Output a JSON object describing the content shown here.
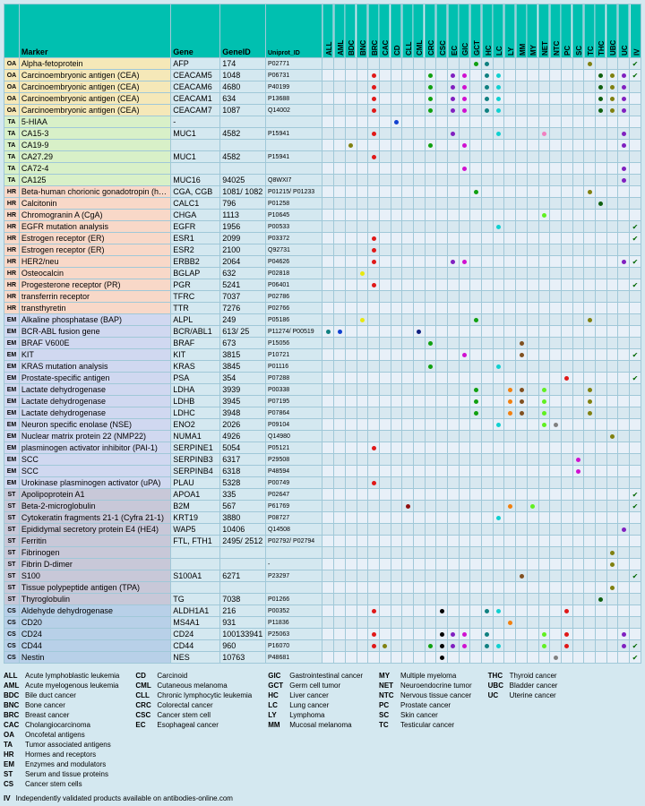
{
  "headers": [
    "",
    "Marker",
    "Gene",
    "GeneID",
    "Uniprot_ID"
  ],
  "cancer_cols": [
    "ALL",
    "AML",
    "BDC",
    "BNC",
    "BRC",
    "CAC",
    "CD",
    "CLL",
    "CML",
    "CRC",
    "CSC",
    "EC",
    "GIC",
    "GCT",
    "HC",
    "LC",
    "LY",
    "MM",
    "MY",
    "NET",
    "NTC",
    "PC",
    "SC",
    "TC",
    "THC",
    "UBC",
    "UC",
    "IV"
  ],
  "colors": {
    "red": "#e01818",
    "blue": "#1040d0",
    "green": "#10a010",
    "cyan": "#10d0d0",
    "magenta": "#d010d0",
    "yellow": "#e8e810",
    "orange": "#f08010",
    "purple": "#8020c0",
    "olive": "#808010",
    "teal": "#108080",
    "black": "#000000",
    "dgreen": "#106010",
    "lime": "#60f020",
    "navy": "#102080",
    "brown": "#805020",
    "pink": "#f080c0",
    "grey": "#808080",
    "dred": "#901010"
  },
  "rows": [
    {
      "cat": "OA",
      "marker": "Alpha-fetoprotein",
      "gene": "AFP",
      "id": "174",
      "uni": "P02771",
      "dots": {
        "GCT": "green",
        "HC": "teal",
        "TC": "olive"
      },
      "iv": true
    },
    {
      "cat": "OA",
      "marker": "Carcinoembryonic antigen (CEA)",
      "gene": "CEACAM5",
      "id": "1048",
      "uni": "P06731",
      "dots": {
        "BRC": "red",
        "CRC": "green",
        "EC": "purple",
        "GIC": "magenta",
        "HC": "teal",
        "LC": "cyan",
        "THC": "dgreen",
        "UBC": "olive",
        "UC": "purple"
      },
      "iv": true
    },
    {
      "cat": "OA",
      "marker": "Carcinoembryonic antigen (CEA)",
      "gene": "CEACAM6",
      "id": "4680",
      "uni": "P40199",
      "dots": {
        "BRC": "red",
        "CRC": "green",
        "EC": "purple",
        "GIC": "magenta",
        "HC": "teal",
        "LC": "cyan",
        "THC": "dgreen",
        "UBC": "olive",
        "UC": "purple"
      }
    },
    {
      "cat": "OA",
      "marker": "Carcinoembryonic antigen (CEA)",
      "gene": "CEACAM1",
      "id": "634",
      "uni": "P13688",
      "dots": {
        "BRC": "red",
        "CRC": "green",
        "EC": "purple",
        "GIC": "magenta",
        "HC": "teal",
        "LC": "cyan",
        "THC": "dgreen",
        "UBC": "olive",
        "UC": "purple"
      }
    },
    {
      "cat": "OA",
      "marker": "Carcinoembryonic antigen (CEA)",
      "gene": "CEACAM7",
      "id": "1087",
      "uni": "Q14002",
      "dots": {
        "BRC": "red",
        "CRC": "green",
        "EC": "purple",
        "GIC": "magenta",
        "HC": "teal",
        "LC": "cyan",
        "THC": "dgreen",
        "UBC": "olive",
        "UC": "purple"
      }
    },
    {
      "cat": "TA",
      "marker": "5-HIAA",
      "gene": "-",
      "id": "",
      "uni": "",
      "dots": {
        "CD": "blue"
      }
    },
    {
      "cat": "TA",
      "marker": "CA15-3",
      "gene": "MUC1",
      "id": "4582",
      "uni": "P15941",
      "dots": {
        "BRC": "red",
        "EC": "purple",
        "LC": "cyan",
        "NET": "pink",
        "UC": "purple"
      }
    },
    {
      "cat": "TA",
      "marker": "CA19-9",
      "gene": "",
      "id": "",
      "uni": "",
      "dots": {
        "BDC": "olive",
        "CRC": "green",
        "GIC": "magenta",
        "UC": "purple"
      }
    },
    {
      "cat": "TA",
      "marker": "CA27.29",
      "gene": "MUC1",
      "id": "4582",
      "uni": "P15941",
      "dots": {
        "BRC": "red"
      }
    },
    {
      "cat": "TA",
      "marker": "CA72-4",
      "gene": "",
      "id": "",
      "uni": "",
      "dots": {
        "GIC": "magenta",
        "UC": "purple"
      }
    },
    {
      "cat": "TA",
      "marker": "CA125",
      "gene": "MUC16",
      "id": "94025",
      "uni": "Q8WXI7",
      "dots": {
        "UC": "purple"
      }
    },
    {
      "cat": "HR",
      "marker": "Beta-human chorionic gonadotropin (hCGβ)",
      "gene": "CGA, CGB",
      "id": "1081/ 1082",
      "uni": "P01215/ P01233",
      "dots": {
        "GCT": "green",
        "TC": "olive"
      }
    },
    {
      "cat": "HR",
      "marker": "Calcitonin",
      "gene": "CALC1",
      "id": "796",
      "uni": "P01258",
      "dots": {
        "THC": "dgreen"
      }
    },
    {
      "cat": "HR",
      "marker": "Chromogranin A (CgA)",
      "gene": "CHGA",
      "id": "1113",
      "uni": "P10645",
      "dots": {
        "NET": "lime"
      }
    },
    {
      "cat": "HR",
      "marker": "EGFR mutation analysis",
      "gene": "EGFR",
      "id": "1956",
      "uni": "P00533",
      "dots": {
        "LC": "cyan"
      },
      "iv": true
    },
    {
      "cat": "HR",
      "marker": "Estrogen receptor (ER)",
      "gene": "ESR1",
      "id": "2099",
      "uni": "P03372",
      "dots": {
        "BRC": "red"
      },
      "iv": true
    },
    {
      "cat": "HR",
      "marker": "Estrogen receptor (ER)",
      "gene": "ESR2",
      "id": "2100",
      "uni": "Q92731",
      "dots": {
        "BRC": "red"
      }
    },
    {
      "cat": "HR",
      "marker": "HER2/neu",
      "gene": "ERBB2",
      "id": "2064",
      "uni": "P04626",
      "dots": {
        "BRC": "red",
        "EC": "purple",
        "GIC": "magenta",
        "UC": "purple"
      },
      "iv": true
    },
    {
      "cat": "HR",
      "marker": "Osteocalcin",
      "gene": "BGLAP",
      "id": "632",
      "uni": "P02818",
      "dots": {
        "BNC": "yellow"
      }
    },
    {
      "cat": "HR",
      "marker": "Progesterone receptor (PR)",
      "gene": "PGR",
      "id": "5241",
      "uni": "P06401",
      "dots": {
        "BRC": "red"
      },
      "iv": true
    },
    {
      "cat": "HR",
      "marker": "transferrin receptor",
      "gene": "TFRC",
      "id": "7037",
      "uni": "P02786",
      "dots": {}
    },
    {
      "cat": "HR",
      "marker": "transthyretin",
      "gene": "TTR",
      "id": "7276",
      "uni": "P02766",
      "dots": {}
    },
    {
      "cat": "EM",
      "marker": "Alkaline phosphatase (BAP)",
      "gene": "ALPL",
      "id": "249",
      "uni": "P05186",
      "dots": {
        "BNC": "yellow",
        "GCT": "green",
        "TC": "olive"
      }
    },
    {
      "cat": "EM",
      "marker": "BCR-ABL fusion gene",
      "gene": "BCR/ABL1",
      "id": "613/ 25",
      "uni": "P11274/ P00519",
      "dots": {
        "ALL": "teal",
        "AML": "blue",
        "CML": "navy"
      }
    },
    {
      "cat": "EM",
      "marker": "BRAF V600E",
      "gene": "BRAF",
      "id": "673",
      "uni": "P15056",
      "dots": {
        "CRC": "green",
        "MM": "brown"
      }
    },
    {
      "cat": "EM",
      "marker": "KIT",
      "gene": "KIT",
      "id": "3815",
      "uni": "P10721",
      "dots": {
        "GIC": "magenta",
        "MM": "brown"
      },
      "iv": true
    },
    {
      "cat": "EM",
      "marker": "KRAS mutation analysis",
      "gene": "KRAS",
      "id": "3845",
      "uni": "P01116",
      "dots": {
        "CRC": "green",
        "LC": "cyan"
      }
    },
    {
      "cat": "EM",
      "marker": "Prostate-specific antigen",
      "gene": "PSA",
      "id": "354",
      "uni": "P07288",
      "dots": {
        "PC": "red"
      },
      "iv": true
    },
    {
      "cat": "EM",
      "marker": "Lactate dehydrogenase",
      "gene": "LDHA",
      "id": "3939",
      "uni": "P00338",
      "dots": {
        "GCT": "green",
        "LY": "orange",
        "MM": "brown",
        "NET": "lime",
        "TC": "olive"
      }
    },
    {
      "cat": "EM",
      "marker": "Lactate dehydrogenase",
      "gene": "LDHB",
      "id": "3945",
      "uni": "P07195",
      "dots": {
        "GCT": "green",
        "LY": "orange",
        "MM": "brown",
        "NET": "lime",
        "TC": "olive"
      }
    },
    {
      "cat": "EM",
      "marker": "Lactate dehydrogenase",
      "gene": "LDHC",
      "id": "3948",
      "uni": "P07864",
      "dots": {
        "GCT": "green",
        "LY": "orange",
        "MM": "brown",
        "NET": "lime",
        "TC": "olive"
      }
    },
    {
      "cat": "EM",
      "marker": "Neuron specific enolase (NSE)",
      "gene": "ENO2",
      "id": "2026",
      "uni": "P09104",
      "dots": {
        "LC": "cyan",
        "NET": "lime",
        "NTC": "grey"
      }
    },
    {
      "cat": "EM",
      "marker": "Nuclear matrix protein 22 (NMP22)",
      "gene": "NUMA1",
      "id": "4926",
      "uni": "Q14980",
      "dots": {
        "UBC": "olive"
      }
    },
    {
      "cat": "EM",
      "marker": "plasminogen activator inhibitor (PAI-1)",
      "gene": "SERPINE1",
      "id": "5054",
      "uni": "P05121",
      "dots": {
        "BRC": "red"
      }
    },
    {
      "cat": "EM",
      "marker": "SCC",
      "gene": "SERPINB3",
      "id": "6317",
      "uni": "P29508",
      "dots": {
        "SC": "magenta"
      }
    },
    {
      "cat": "EM",
      "marker": "SCC",
      "gene": "SERPINB4",
      "id": "6318",
      "uni": "P48594",
      "dots": {
        "SC": "magenta"
      }
    },
    {
      "cat": "EM",
      "marker": "Urokinase plasminogen activator (uPA)",
      "gene": "PLAU",
      "id": "5328",
      "uni": "P00749",
      "dots": {
        "BRC": "red"
      }
    },
    {
      "cat": "ST",
      "marker": "Apolipoprotein A1",
      "gene": "APOA1",
      "id": "335",
      "uni": "P02647",
      "dots": {},
      "iv": true
    },
    {
      "cat": "ST",
      "marker": "Beta-2-microglobulin",
      "gene": "B2M",
      "id": "567",
      "uni": "P61769",
      "dots": {
        "CLL": "dred",
        "LY": "orange",
        "MY": "lime"
      },
      "iv": true
    },
    {
      "cat": "ST",
      "marker": "Cytokeratin fragments 21-1 (Cyfra 21-1)",
      "gene": "KRT19",
      "id": "3880",
      "uni": "P08727",
      "dots": {
        "LC": "cyan"
      }
    },
    {
      "cat": "ST",
      "marker": "Epididymal secretory protein E4 (HE4)",
      "gene": "WAP5",
      "id": "10406",
      "uni": "Q14508",
      "dots": {
        "UC": "purple"
      }
    },
    {
      "cat": "ST",
      "marker": "Ferritin",
      "gene": "FTL, FTH1",
      "id": "2495/ 2512",
      "uni": "P02792/ P02794",
      "dots": {}
    },
    {
      "cat": "ST",
      "marker": "Fibrinogen",
      "gene": "",
      "id": "",
      "uni": "",
      "dots": {
        "UBC": "olive"
      }
    },
    {
      "cat": "ST",
      "marker": "Fibrin D-dimer",
      "gene": "",
      "id": "",
      "uni": "-",
      "dots": {
        "UBC": "olive"
      }
    },
    {
      "cat": "ST",
      "marker": "S100",
      "gene": "S100A1",
      "id": "6271",
      "uni": "P23297",
      "dots": {
        "MM": "brown"
      },
      "iv": true
    },
    {
      "cat": "ST",
      "marker": "Tissue polypeptide antigen (TPA)",
      "gene": "",
      "id": "",
      "uni": "",
      "dots": {
        "UBC": "olive"
      }
    },
    {
      "cat": "ST",
      "marker": "Thyroglobulin",
      "gene": "TG",
      "id": "7038",
      "uni": "P01266",
      "dots": {
        "THC": "dgreen"
      }
    },
    {
      "cat": "CS",
      "marker": "Aldehyde dehydrogenase",
      "gene": "ALDH1A1",
      "id": "216",
      "uni": "P00352",
      "dots": {
        "BRC": "red",
        "CSC": "black",
        "HC": "teal",
        "LC": "cyan",
        "PC": "red"
      }
    },
    {
      "cat": "CS",
      "marker": "CD20",
      "gene": "MS4A1",
      "id": "931",
      "uni": "P11836",
      "dots": {
        "LY": "orange"
      }
    },
    {
      "cat": "CS",
      "marker": "CD24",
      "gene": "CD24",
      "id": "100133941",
      "uni": "P25063",
      "dots": {
        "BRC": "red",
        "CSC": "black",
        "EC": "purple",
        "GIC": "magenta",
        "HC": "teal",
        "NET": "lime",
        "PC": "red",
        "UC": "purple"
      }
    },
    {
      "cat": "CS",
      "marker": "CD44",
      "gene": "CD44",
      "id": "960",
      "uni": "P16070",
      "dots": {
        "BRC": "red",
        "CAC": "olive",
        "CRC": "green",
        "CSC": "black",
        "EC": "purple",
        "GIC": "magenta",
        "HC": "teal",
        "LC": "cyan",
        "NET": "lime",
        "PC": "red",
        "UC": "purple"
      },
      "iv": true
    },
    {
      "cat": "CS",
      "marker": "Nestin",
      "gene": "NES",
      "id": "10763",
      "uni": "P48681",
      "dots": {
        "CSC": "black",
        "NTC": "grey"
      },
      "iv": true
    }
  ],
  "legend": [
    [
      [
        "ALL",
        "Acute lymphoblastic leukemia"
      ],
      [
        "AML",
        "Acute myelogenous leukemia"
      ],
      [
        "BDC",
        "Bile duct cancer"
      ],
      [
        "BNC",
        "Bone cancer"
      ],
      [
        "BRC",
        "Breast cancer"
      ],
      [
        "CAC",
        "Cholangiocarcinoma"
      ]
    ],
    [
      [
        "CD",
        "Carcinoid"
      ],
      [
        "CML",
        "Cutaneous melanoma"
      ],
      [
        "CLL",
        "Chronic lymphocytic leukemia"
      ],
      [
        "CRC",
        "Colorectal cancer"
      ],
      [
        "CSC",
        "Cancer stem cell"
      ],
      [
        "EC",
        "Esophageal cancer"
      ]
    ],
    [
      [
        "GIC",
        "Gastrointestinal cancer"
      ],
      [
        "GCT",
        "Germ cell tumor"
      ],
      [
        "HC",
        "Liver cancer"
      ],
      [
        "LC",
        "Lung cancer"
      ],
      [
        "LY",
        "Lymphoma"
      ],
      [
        "MM",
        "Mucosal melanoma"
      ]
    ],
    [
      [
        "MY",
        "Multiple myeloma"
      ],
      [
        "NET",
        "Neuroendocrine tumor"
      ],
      [
        "NTC",
        "Nervous tissue cancer"
      ],
      [
        "PC",
        "Prostate cancer"
      ],
      [
        "SC",
        "Skin cancer"
      ],
      [
        "TC",
        "Testicular cancer"
      ]
    ],
    [
      [
        "THC",
        "Thyroid cancer"
      ],
      [
        "UBC",
        "Bladder cancer"
      ],
      [
        "UC",
        "Uterine cancer"
      ]
    ],
    [
      [
        "OA",
        "Oncofetal antigens"
      ],
      [
        "TA",
        "Tumor associated antigens"
      ],
      [
        "HR",
        "Hormes and receptors"
      ],
      [
        "EM",
        "Enzymes and modulators"
      ],
      [
        "ST",
        "Serum and tissue proteins"
      ],
      [
        "CS",
        "Cancer stem cells"
      ]
    ]
  ],
  "iv_note": {
    "label": "IV",
    "text": "Independently validated products available on antibodies-online.com"
  }
}
